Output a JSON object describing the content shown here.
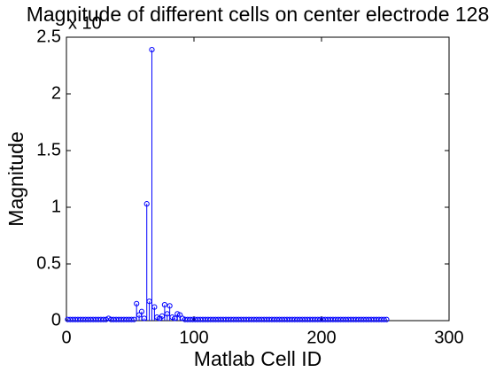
{
  "chart_data": {
    "type": "stem",
    "title": "Magnitude of different cells on center electrode 128",
    "xlabel": "Matlab Cell ID",
    "ylabel": "Magnitude",
    "exponent_label": "x 10",
    "xlim": [
      0,
      300
    ],
    "xticks": [
      0,
      100,
      200,
      300
    ],
    "ylim": [
      0,
      2.5
    ],
    "yticks": [
      0,
      0.5,
      1,
      1.5,
      2,
      2.5
    ],
    "series": [
      {
        "name": "Magnitude",
        "color": "#0000ff",
        "x": [
          1,
          3,
          5,
          7,
          9,
          11,
          13,
          15,
          17,
          19,
          21,
          23,
          25,
          27,
          29,
          31,
          33,
          35,
          37,
          39,
          41,
          43,
          45,
          47,
          49,
          51,
          53,
          55,
          57,
          59,
          61,
          63,
          65,
          67,
          69,
          71,
          73,
          75,
          77,
          79,
          81,
          83,
          85,
          87,
          89,
          91,
          93,
          95,
          97,
          99,
          101,
          103,
          105,
          107,
          109,
          111,
          113,
          115,
          117,
          119,
          121,
          123,
          125,
          127,
          129,
          131,
          133,
          135,
          137,
          139,
          141,
          143,
          145,
          147,
          149,
          151,
          153,
          155,
          157,
          159,
          161,
          163,
          165,
          167,
          169,
          171,
          173,
          175,
          177,
          179,
          181,
          183,
          185,
          187,
          189,
          191,
          193,
          195,
          197,
          199,
          201,
          203,
          205,
          207,
          209,
          211,
          213,
          215,
          217,
          219,
          221,
          223,
          225,
          227,
          229,
          231,
          233,
          235,
          237,
          239,
          241,
          243,
          245,
          247,
          249,
          251
        ],
        "values": [
          0.01,
          0.01,
          0.01,
          0.01,
          0.01,
          0.01,
          0.01,
          0.01,
          0.01,
          0.01,
          0.01,
          0.01,
          0.01,
          0.01,
          0.01,
          0.01,
          0.02,
          0.01,
          0.01,
          0.01,
          0.01,
          0.01,
          0.01,
          0.01,
          0.01,
          0.01,
          0.01,
          0.15,
          0.05,
          0.08,
          0.02,
          1.03,
          0.17,
          2.39,
          0.12,
          0.03,
          0.02,
          0.04,
          0.14,
          0.06,
          0.13,
          0.03,
          0.02,
          0.06,
          0.05,
          0.02,
          0.01,
          0.01,
          0.01,
          0.01,
          0.01,
          0.01,
          0.01,
          0.01,
          0.01,
          0.01,
          0.01,
          0.01,
          0.01,
          0.01,
          0.01,
          0.01,
          0.01,
          0.01,
          0.01,
          0.01,
          0.01,
          0.01,
          0.01,
          0.01,
          0.01,
          0.01,
          0.01,
          0.01,
          0.01,
          0.01,
          0.01,
          0.01,
          0.01,
          0.01,
          0.01,
          0.01,
          0.01,
          0.01,
          0.01,
          0.01,
          0.01,
          0.01,
          0.01,
          0.01,
          0.01,
          0.01,
          0.01,
          0.01,
          0.01,
          0.01,
          0.01,
          0.01,
          0.01,
          0.01,
          0.01,
          0.01,
          0.01,
          0.01,
          0.01,
          0.01,
          0.01,
          0.01,
          0.01,
          0.01,
          0.01,
          0.01,
          0.01,
          0.01,
          0.01,
          0.01,
          0.01,
          0.01,
          0.01,
          0.01,
          0.01,
          0.01,
          0.01,
          0.01,
          0.01,
          0.01
        ]
      }
    ],
    "grid": false
  }
}
